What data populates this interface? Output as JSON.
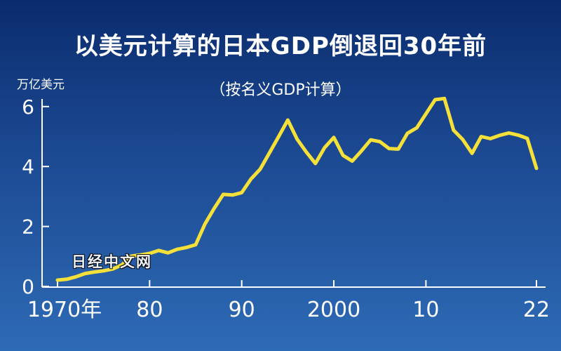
{
  "chart_data": {
    "type": "line",
    "title": "以美元计算的日本GDP倒退回30年前",
    "subtitle": "（按名义GDP计算）",
    "ylabel": "万亿美元",
    "xlabel": "",
    "x_ticks": [
      "1970年",
      "80",
      "90",
      "2000",
      "10",
      "22"
    ],
    "x_tick_values": [
      1970,
      1980,
      1990,
      2000,
      2010,
      2022
    ],
    "y_ticks": [
      0,
      2,
      4,
      6
    ],
    "xlim": [
      1970,
      2022
    ],
    "ylim": [
      0,
      6.3
    ],
    "line_color": "#f5e03a",
    "series": [
      {
        "x": [
          1970,
          1971,
          1972,
          1973,
          1974,
          1975,
          1976,
          1977,
          1978,
          1979,
          1980,
          1981,
          1982,
          1983,
          1984,
          1985,
          1986,
          1987,
          1988,
          1989,
          1990,
          1991,
          1992,
          1993,
          1994,
          1995,
          1996,
          1997,
          1998,
          1999,
          2000,
          2001,
          2002,
          2003,
          2004,
          2005,
          2006,
          2007,
          2008,
          2009,
          2010,
          2011,
          2012,
          2013,
          2014,
          2015,
          2016,
          2017,
          2018,
          2019,
          2020,
          2021,
          2022
        ],
        "y": [
          0.21,
          0.24,
          0.32,
          0.43,
          0.48,
          0.52,
          0.58,
          0.72,
          1.01,
          1.05,
          1.1,
          1.2,
          1.12,
          1.24,
          1.3,
          1.39,
          2.08,
          2.6,
          3.07,
          3.05,
          3.13,
          3.58,
          3.91,
          4.45,
          4.99,
          5.55,
          4.92,
          4.49,
          4.1,
          4.63,
          4.97,
          4.37,
          4.18,
          4.52,
          4.89,
          4.83,
          4.6,
          4.58,
          5.11,
          5.29,
          5.76,
          6.23,
          6.27,
          5.21,
          4.9,
          4.44,
          5.0,
          4.93,
          5.04,
          5.12,
          5.05,
          4.94,
          3.94
        ]
      }
    ]
  },
  "watermark": "日经中文网"
}
